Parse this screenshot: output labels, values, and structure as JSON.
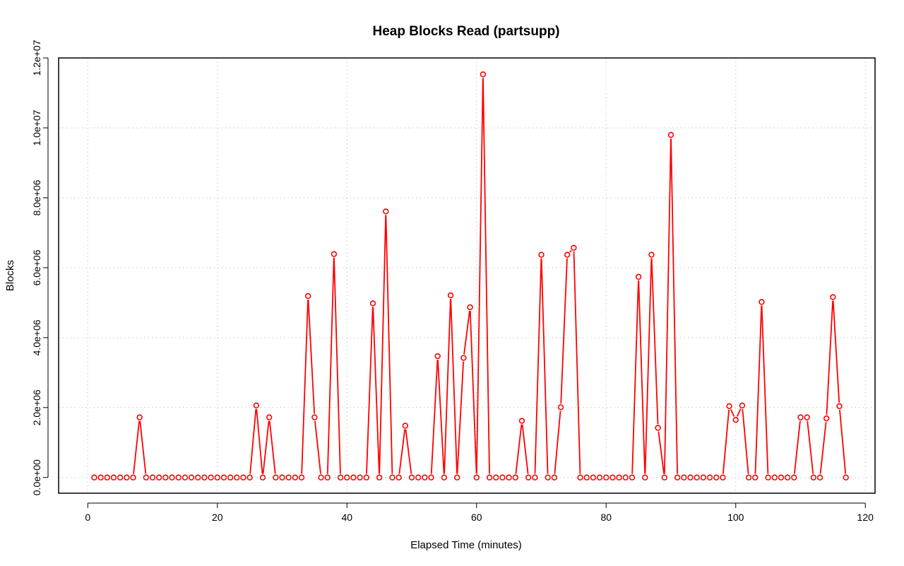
{
  "chart_data": {
    "type": "line",
    "title": "Heap Blocks Read (partsupp)",
    "xlabel": "Elapsed Time (minutes)",
    "ylabel": "Blocks",
    "xlim": [
      -4.5,
      121.5
    ],
    "ylim": [
      -450000,
      12000000
    ],
    "x_ticks": [
      0,
      20,
      40,
      60,
      80,
      100,
      120
    ],
    "x_tick_labels": [
      "0",
      "20",
      "40",
      "60",
      "80",
      "100",
      "120"
    ],
    "y_ticks": [
      0,
      2000000,
      4000000,
      6000000,
      8000000,
      10000000,
      12000000
    ],
    "y_tick_labels": [
      "0.0e+00",
      "2.0e+06",
      "4.0e+06",
      "6.0e+06",
      "8.0e+06",
      "1.0e+07",
      "1.2e+07"
    ],
    "grid": true,
    "series_color": "#ff0000",
    "series": [
      {
        "name": "",
        "x": [
          1,
          2,
          3,
          4,
          5,
          6,
          7,
          8,
          9,
          10,
          11,
          12,
          13,
          14,
          15,
          16,
          17,
          18,
          19,
          20,
          21,
          22,
          23,
          24,
          25,
          26,
          27,
          28,
          29,
          30,
          31,
          32,
          33,
          34,
          35,
          36,
          37,
          38,
          39,
          40,
          41,
          42,
          43,
          44,
          45,
          46,
          47,
          48,
          49,
          50,
          51,
          52,
          53,
          54,
          55,
          56,
          57,
          58,
          59,
          60,
          61,
          62,
          63,
          64,
          65,
          66,
          67,
          68,
          69,
          70,
          71,
          72,
          73,
          74,
          75,
          76,
          77,
          78,
          79,
          80,
          81,
          82,
          83,
          84,
          85,
          86,
          87,
          88,
          89,
          90,
          91,
          92,
          93,
          94,
          95,
          96,
          97,
          98,
          99,
          100,
          101,
          102,
          103,
          104,
          105,
          106,
          107,
          108,
          109,
          110,
          111,
          112,
          113,
          114,
          115,
          116,
          117
        ],
        "values": [
          0,
          0,
          0,
          0,
          0,
          0,
          0,
          1720000,
          0,
          0,
          0,
          0,
          0,
          0,
          0,
          0,
          0,
          0,
          0,
          0,
          0,
          0,
          0,
          0,
          0,
          2060000,
          0,
          1720000,
          0,
          0,
          0,
          0,
          0,
          5190000,
          1720000,
          0,
          0,
          6390000,
          0,
          0,
          0,
          0,
          0,
          4980000,
          0,
          7610000,
          0,
          0,
          1480000,
          0,
          0,
          0,
          0,
          3470000,
          0,
          5210000,
          0,
          3420000,
          4870000,
          0,
          11530000,
          0,
          0,
          0,
          0,
          0,
          1620000,
          0,
          0,
          6370000,
          0,
          0,
          2010000,
          6370000,
          6570000,
          0,
          0,
          0,
          0,
          0,
          0,
          0,
          0,
          0,
          5740000,
          0,
          6370000,
          1420000,
          0,
          9800000,
          0,
          0,
          0,
          0,
          0,
          0,
          0,
          0,
          2040000,
          1650000,
          2060000,
          0,
          0,
          5020000,
          0,
          0,
          0,
          0,
          0,
          1720000,
          1720000,
          0,
          0,
          1690000,
          5160000,
          2040000,
          0
        ]
      }
    ]
  }
}
